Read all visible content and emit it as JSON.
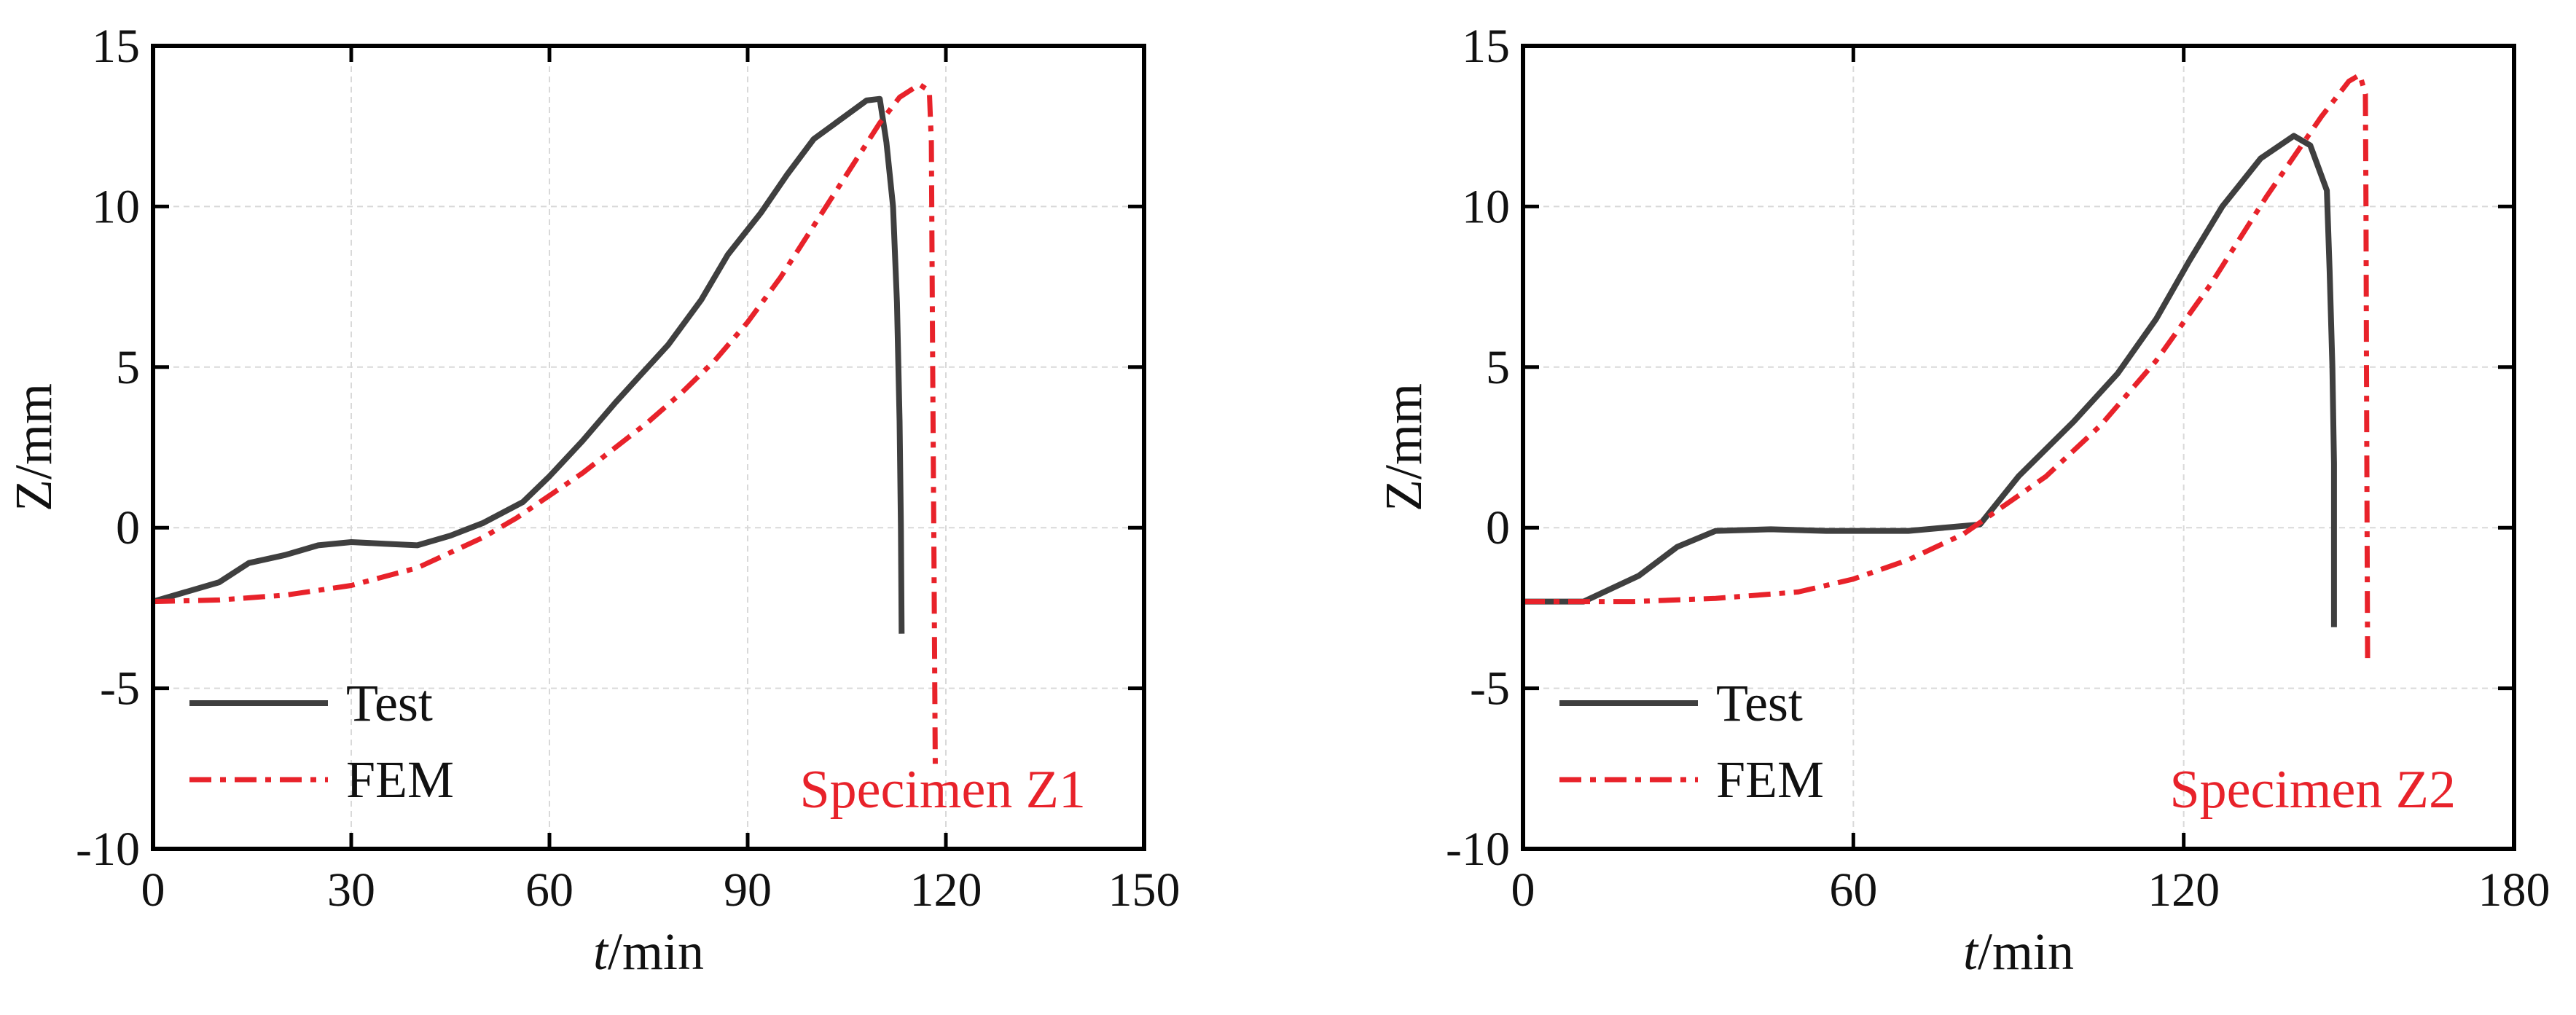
{
  "chart_data": [
    {
      "type": "line",
      "title": "",
      "xlabel": "t/min",
      "xlabel_italic": "t",
      "xlabel_rest": "/min",
      "ylabel": "Z/mm",
      "xlim": [
        0,
        150
      ],
      "ylim": [
        -10,
        15
      ],
      "xticks": [
        0,
        30,
        60,
        90,
        120,
        150
      ],
      "xtick_labels": [
        "0",
        "30",
        "60",
        "90",
        "120",
        "150"
      ],
      "yticks": [
        -10,
        -5,
        0,
        5,
        10,
        15
      ],
      "ytick_labels": [
        "-10",
        "-5",
        "0",
        "5",
        "10",
        "15"
      ],
      "grid": true,
      "legend_position": "bottom-left",
      "annotation": "Specimen Z1",
      "annotation_color": "#e8222a",
      "series": [
        {
          "name": "Test",
          "color": "#3f3f3f",
          "style": "solid",
          "points": [
            [
              0,
              -2.3
            ],
            [
              10,
              -1.7
            ],
            [
              14.5,
              -1.1
            ],
            [
              20,
              -0.85
            ],
            [
              25,
              -0.55
            ],
            [
              30,
              -0.45
            ],
            [
              35,
              -0.5
            ],
            [
              40,
              -0.55
            ],
            [
              45,
              -0.25
            ],
            [
              50,
              0.15
            ],
            [
              56,
              0.8
            ],
            [
              60,
              1.6
            ],
            [
              65,
              2.7
            ],
            [
              70,
              3.9
            ],
            [
              74,
              4.8
            ],
            [
              78,
              5.7
            ],
            [
              83,
              7.1
            ],
            [
              87,
              8.5
            ],
            [
              92,
              9.8
            ],
            [
              96,
              11.0
            ],
            [
              100,
              12.1
            ],
            [
              104,
              12.7
            ],
            [
              108,
              13.3
            ],
            [
              110,
              13.35
            ],
            [
              111,
              12.0
            ],
            [
              112,
              10.0
            ],
            [
              112.6,
              7.0
            ],
            [
              113,
              3.3
            ],
            [
              113.2,
              0.0
            ],
            [
              113.3,
              -3.3
            ]
          ]
        },
        {
          "name": "FEM",
          "color": "#e8222a",
          "style": "dash-dot",
          "points": [
            [
              0,
              -2.3
            ],
            [
              10,
              -2.25
            ],
            [
              20,
              -2.1
            ],
            [
              30,
              -1.8
            ],
            [
              40,
              -1.25
            ],
            [
              50,
              -0.3
            ],
            [
              55,
              0.3
            ],
            [
              60,
              1.0
            ],
            [
              65,
              1.7
            ],
            [
              70,
              2.5
            ],
            [
              75,
              3.3
            ],
            [
              80,
              4.2
            ],
            [
              85,
              5.2
            ],
            [
              90,
              6.4
            ],
            [
              95,
              7.8
            ],
            [
              100,
              9.4
            ],
            [
              105,
              11.0
            ],
            [
              110,
              12.6
            ],
            [
              113,
              13.4
            ],
            [
              116,
              13.8
            ],
            [
              117.5,
              13.6
            ],
            [
              117.8,
              12.0
            ],
            [
              118,
              5.0
            ],
            [
              118.2,
              -1.0
            ],
            [
              118.4,
              -7.6
            ]
          ]
        }
      ]
    },
    {
      "type": "line",
      "title": "",
      "xlabel": "t/min",
      "xlabel_italic": "t",
      "xlabel_rest": "/min",
      "ylabel": "Z/mm",
      "xlim": [
        0,
        180
      ],
      "ylim": [
        -10,
        15
      ],
      "xticks": [
        0,
        60,
        120,
        180
      ],
      "xtick_labels": [
        "0",
        "60",
        "120",
        "180"
      ],
      "yticks": [
        -10,
        -5,
        0,
        5,
        10,
        15
      ],
      "ytick_labels": [
        "-10",
        "-5",
        "0",
        "5",
        "10",
        "15"
      ],
      "grid": true,
      "legend_position": "bottom-left",
      "annotation": "Specimen Z2",
      "annotation_color": "#e8222a",
      "series": [
        {
          "name": "Test",
          "color": "#3f3f3f",
          "style": "solid",
          "points": [
            [
              0,
              -2.3
            ],
            [
              11,
              -2.3
            ],
            [
              21,
              -1.5
            ],
            [
              28,
              -0.6
            ],
            [
              35,
              -0.1
            ],
            [
              45,
              -0.05
            ],
            [
              55,
              -0.1
            ],
            [
              70,
              -0.1
            ],
            [
              83,
              0.1
            ],
            [
              90,
              1.6
            ],
            [
              100,
              3.3
            ],
            [
              108,
              4.8
            ],
            [
              115,
              6.5
            ],
            [
              121,
              8.3
            ],
            [
              127,
              10.0
            ],
            [
              134,
              11.5
            ],
            [
              140,
              12.2
            ],
            [
              143,
              11.9
            ],
            [
              146,
              10.5
            ],
            [
              146.5,
              8.0
            ],
            [
              147,
              5.0
            ],
            [
              147.3,
              2.0
            ],
            [
              147.3,
              -3.1
            ]
          ]
        },
        {
          "name": "FEM",
          "color": "#e8222a",
          "style": "dash-dot",
          "points": [
            [
              0,
              -2.3
            ],
            [
              20,
              -2.3
            ],
            [
              35,
              -2.2
            ],
            [
              50,
              -2.0
            ],
            [
              60,
              -1.6
            ],
            [
              70,
              -1.0
            ],
            [
              80,
              -0.2
            ],
            [
              85,
              0.4
            ],
            [
              95,
              1.6
            ],
            [
              105,
              3.2
            ],
            [
              115,
              5.2
            ],
            [
              125,
              7.6
            ],
            [
              135,
              10.3
            ],
            [
              145,
              12.8
            ],
            [
              150,
              13.9
            ],
            [
              152,
              14.1
            ],
            [
              153,
              13.5
            ],
            [
              153.1,
              10.0
            ],
            [
              153.2,
              5.0
            ],
            [
              153.3,
              0.0
            ],
            [
              153.4,
              -4.1
            ]
          ]
        }
      ]
    }
  ]
}
